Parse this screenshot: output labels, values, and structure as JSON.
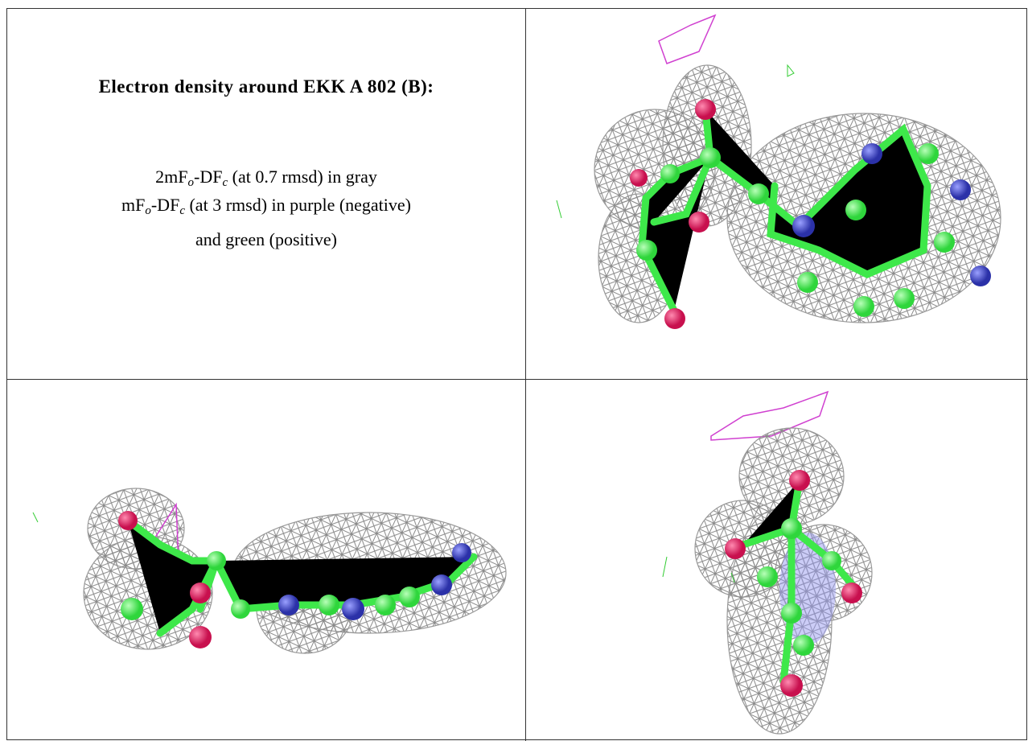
{
  "panel": {
    "title": "Electron density around EKK A 802 (B):",
    "lines": [
      [
        "2mF",
        "o",
        "-DF",
        "c",
        " (at 0.7 rmsd) in gray"
      ],
      [
        "mF",
        "o",
        "-DF",
        "c",
        " (at 3 rmsd) in purple (negative)"
      ],
      [
        "and green (positive)"
      ]
    ]
  }
}
